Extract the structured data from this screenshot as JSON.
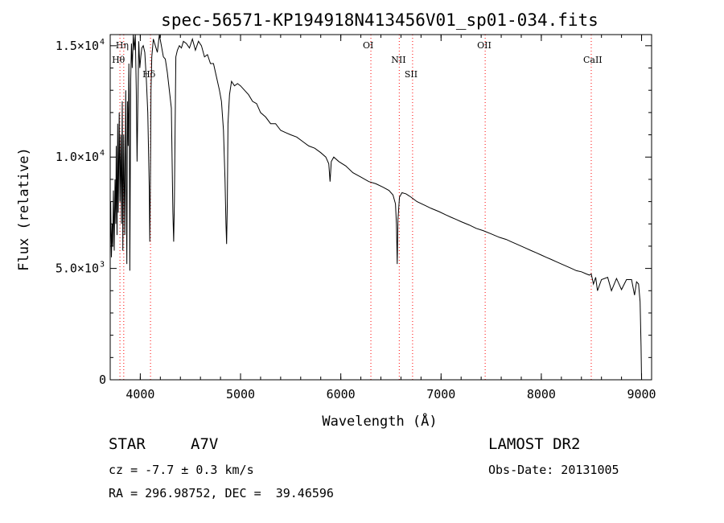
{
  "chart_data": {
    "type": "line",
    "title": "spec-56571-KP194918N413456V01_sp01-034.fits",
    "xlabel": "Wavelength (Å)",
    "ylabel": "Flux (relative)",
    "xlim": [
      3700,
      9100
    ],
    "ylim": [
      0,
      15500
    ],
    "x_ticks": [
      4000,
      5000,
      6000,
      7000,
      8000,
      9000
    ],
    "y_ticks": [
      {
        "value": 0,
        "label": "0"
      },
      {
        "value": 5000,
        "label": "5.0×10",
        "exp": "3"
      },
      {
        "value": 10000,
        "label": "1.0×10",
        "exp": "4"
      },
      {
        "value": 15000,
        "label": "1.5×10",
        "exp": "4"
      }
    ],
    "grid": false,
    "series": [
      {
        "x": [
          3700,
          3705,
          3712,
          3720,
          3725,
          3732,
          3740,
          3748,
          3755,
          3760,
          3768,
          3775,
          3780,
          3790,
          3797,
          3805,
          3812,
          3820,
          3826,
          3835,
          3845,
          3855,
          3860,
          3866,
          3872,
          3880,
          3886,
          3890,
          3896,
          3905,
          3912,
          3920,
          3930,
          3940,
          3950,
          3960,
          3968,
          3975,
          3985,
          3995,
          4005,
          4015,
          4030,
          4045,
          4060,
          4075,
          4090,
          4095,
          4101,
          4107,
          4115,
          4130,
          4150,
          4170,
          4190,
          4210,
          4230,
          4250,
          4270,
          4290,
          4310,
          4325,
          4333,
          4340,
          4347,
          4355,
          4370,
          4390,
          4410,
          4430,
          4460,
          4490,
          4520,
          4550,
          4580,
          4610,
          4640,
          4670,
          4700,
          4730,
          4760,
          4790,
          4810,
          4830,
          4845,
          4855,
          4861,
          4868,
          4875,
          4890,
          4910,
          4940,
          4970,
          5000,
          5040,
          5080,
          5120,
          5160,
          5200,
          5250,
          5300,
          5350,
          5400,
          5450,
          5500,
          5560,
          5620,
          5680,
          5740,
          5800,
          5850,
          5880,
          5893,
          5905,
          5930,
          5980,
          6050,
          6120,
          6200,
          6280,
          6350,
          6420,
          6480,
          6520,
          6545,
          6555,
          6563,
          6570,
          6585,
          6610,
          6650,
          6700,
          6760,
          6830,
          6900,
          6980,
          7050,
          7100,
          7150,
          7200,
          7280,
          7350,
          7420,
          7500,
          7580,
          7650,
          7700,
          7750,
          7800,
          7850,
          7900,
          7950,
          8000,
          8050,
          8100,
          8150,
          8200,
          8250,
          8300,
          8350,
          8400,
          8450,
          8480,
          8498,
          8520,
          8542,
          8560,
          8600,
          8662,
          8700,
          8750,
          8800,
          8850,
          8900,
          8930,
          8950,
          8970,
          8985,
          8995,
          9000
        ],
        "y": [
          6000,
          8000,
          5500,
          7000,
          6000,
          8500,
          5800,
          9000,
          7000,
          10500,
          6500,
          11500,
          7500,
          12000,
          8000,
          11000,
          7000,
          12500,
          5800,
          11000,
          6500,
          13000,
          9000,
          5200,
          12500,
          10500,
          14200,
          12800,
          4900,
          13500,
          15100,
          14000,
          16000,
          14800,
          15500,
          13000,
          9800,
          12200,
          15200,
          14000,
          14500,
          14900,
          15000,
          14700,
          13500,
          12000,
          8500,
          6200,
          9000,
          13000,
          14500,
          15300,
          15000,
          14700,
          15500,
          15000,
          14500,
          14400,
          13800,
          13000,
          12200,
          7500,
          6200,
          8000,
          11000,
          14500,
          14800,
          15000,
          14900,
          15200,
          15100,
          14900,
          15300,
          14800,
          15200,
          15000,
          14500,
          14600,
          14200,
          14200,
          13600,
          13000,
          12500,
          11200,
          9000,
          7000,
          6100,
          8000,
          11500,
          12800,
          13400,
          13200,
          13300,
          13200,
          13000,
          12800,
          12500,
          12400,
          12000,
          11800,
          11500,
          11500,
          11200,
          11100,
          11000,
          10900,
          10700,
          10500,
          10400,
          10200,
          10000,
          9700,
          8900,
          9800,
          10000,
          9800,
          9600,
          9300,
          9100,
          8900,
          8800,
          8650,
          8500,
          8300,
          7900,
          7000,
          5200,
          7200,
          8200,
          8400,
          8350,
          8200,
          8000,
          7850,
          7700,
          7550,
          7400,
          7300,
          7200,
          7100,
          6950,
          6800,
          6700,
          6550,
          6400,
          6300,
          6200,
          6100,
          6000,
          5900,
          5800,
          5700,
          5600,
          5500,
          5400,
          5300,
          5200,
          5100,
          5000,
          4900,
          4850,
          4750,
          4700,
          4750,
          4300,
          4600,
          4000,
          4500,
          4600,
          4000,
          4550,
          4050,
          4500,
          4500,
          3800,
          4400,
          4300,
          3500,
          1500,
          0
        ]
      }
    ],
    "annotations": [
      {
        "name": "Hη",
        "x": 3835
      },
      {
        "name": "Hθ",
        "x": 3797
      },
      {
        "name": "Hδ",
        "x": 4102
      },
      {
        "name": "OI",
        "x": 6300
      },
      {
        "name": "NII",
        "x": 6583
      },
      {
        "name": "SII",
        "x": 6716
      },
      {
        "name": "OII",
        "x": 7440
      },
      {
        "name": "CaII",
        "x": 8498
      }
    ]
  },
  "info": {
    "object_class": "STAR",
    "subclass": "A7V",
    "redshift": "cz = -7.7 ± 0.3 km/s",
    "coords": "RA = 296.98752, DEC =  39.46596",
    "survey": "LAMOST DR2",
    "obs_date": "Obs-Date: 20131005"
  },
  "colors": {
    "line": "#000000",
    "annotation": "#ff0000",
    "frame": "#000000"
  }
}
